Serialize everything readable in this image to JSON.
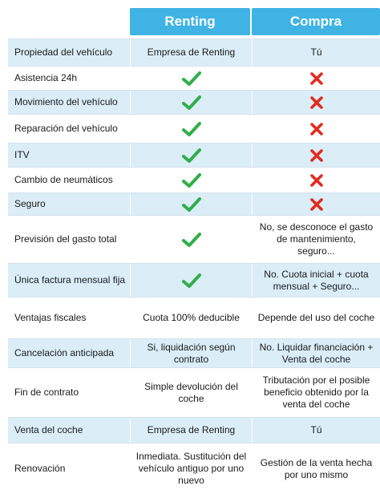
{
  "colors": {
    "header_bg": "#3fb3e3",
    "row_shade": "#dbeef8",
    "row_plain": "#ffffff",
    "check": "#2fae4a",
    "cross": "#e32b1f"
  },
  "header": {
    "renting": "Renting",
    "compra": "Compra"
  },
  "rows": [
    {
      "label": "Propiedad del vehículo",
      "renting": "Empresa de Renting",
      "renting_icon": null,
      "compra": "Tú",
      "compra_icon": null
    },
    {
      "label": "Asistencia 24h",
      "renting": null,
      "renting_icon": "check-icon",
      "compra": null,
      "compra_icon": "cross-icon"
    },
    {
      "label": "Movimiento del vehículo",
      "renting": null,
      "renting_icon": "check-icon",
      "compra": null,
      "compra_icon": "cross-icon"
    },
    {
      "label": "Reparación del vehículo",
      "renting": null,
      "renting_icon": "check-icon",
      "compra": null,
      "compra_icon": "cross-icon"
    },
    {
      "label": "ITV",
      "renting": null,
      "renting_icon": "check-icon",
      "compra": null,
      "compra_icon": "cross-icon"
    },
    {
      "label": "Cambio de neumáticos",
      "renting": null,
      "renting_icon": "check-icon",
      "compra": null,
      "compra_icon": "cross-icon"
    },
    {
      "label": "Seguro",
      "renting": null,
      "renting_icon": "check-icon",
      "compra": null,
      "compra_icon": "cross-icon"
    },
    {
      "label": "Previsión del gasto total",
      "renting": null,
      "renting_icon": "check-icon",
      "compra": "No, se desconoce el gasto de mantenimiento, seguro...",
      "compra_icon": null
    },
    {
      "label": "Única factura mensual fija",
      "renting": null,
      "renting_icon": "check-icon",
      "compra": "No. Cuota inicial + cuota mensual + Seguro...",
      "compra_icon": null
    },
    {
      "label": "Ventajas fiscales",
      "renting": "Cuota 100% deducible",
      "renting_icon": null,
      "compra": "Depende del uso del coche",
      "compra_icon": null
    },
    {
      "label": "Cancelación anticipada",
      "renting": "Si, liquidación según contrato",
      "renting_icon": null,
      "compra": "No. Liquidar financiación + Venta del coche",
      "compra_icon": null
    },
    {
      "label": "Fin de contrato",
      "renting": "Simple devolución del coche",
      "renting_icon": null,
      "compra": "Tributación por el posible beneficio obtenido por la venta del coche",
      "compra_icon": null
    },
    {
      "label": "Venta del coche",
      "renting": "Empresa de Renting",
      "renting_icon": null,
      "compra": "Tú",
      "compra_icon": null
    },
    {
      "label": "Renovación",
      "renting": "Inmediata. Sustitución del vehículo antiguo por uno nuevo",
      "renting_icon": null,
      "compra": "Gestión de la venta hecha por uno mismo",
      "compra_icon": null
    }
  ]
}
